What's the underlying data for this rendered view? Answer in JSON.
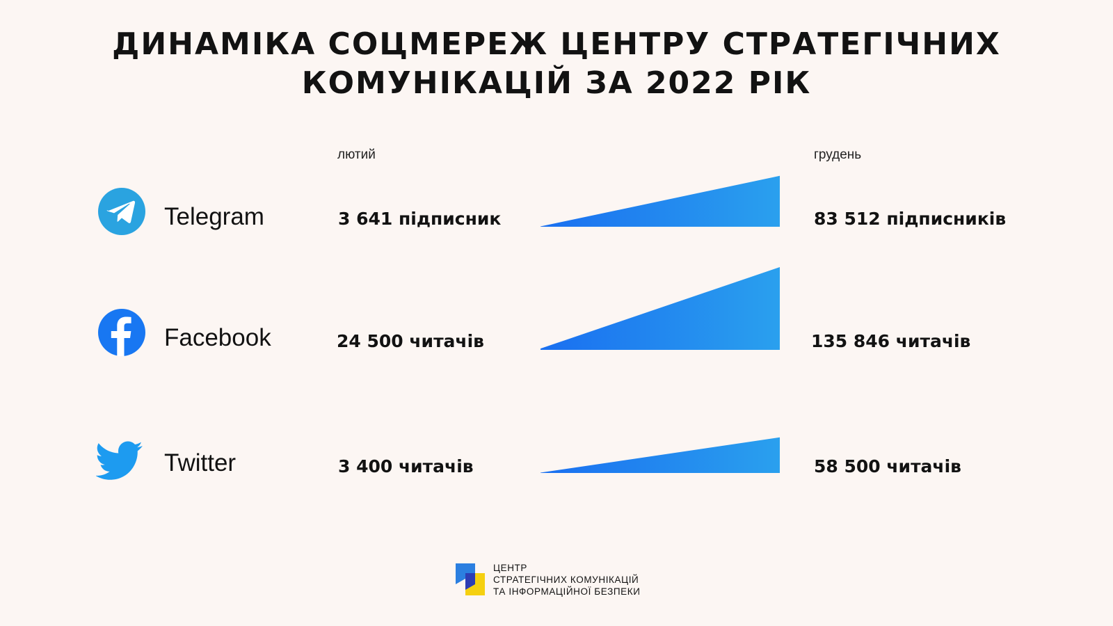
{
  "title": {
    "line1": "ДИНАМІКА СОЦМЕРЕЖ ЦЕНТРУ СТРАТЕГІЧНИХ",
    "line2": "КОМУНІКАЦІЙ ЗА 2022 РІК"
  },
  "columns": {
    "start": "лютий",
    "end": "грудень"
  },
  "rows": [
    {
      "platform": "Telegram",
      "icon": "telegram-icon",
      "start_label": "3 641 підписник",
      "end_label": "83 512 підписників"
    },
    {
      "platform": "Facebook",
      "icon": "facebook-icon",
      "start_label": "24 500 читачів",
      "end_label": "135 846 читачів"
    },
    {
      "platform": "Twitter",
      "icon": "twitter-icon",
      "start_label": "3 400 читачів",
      "end_label": "58 500 читачів"
    }
  ],
  "chart_data": {
    "type": "area",
    "title": "ДИНАМІКА СОЦМЕРЕЖ ЦЕНТРУ СТРАТЕГІЧНИХ КОМУНІКАЦІЙ ЗА 2022 РІК",
    "categories": [
      "лютий",
      "грудень"
    ],
    "series": [
      {
        "name": "Telegram",
        "values": [
          3641,
          83512
        ]
      },
      {
        "name": "Facebook",
        "values": [
          24500,
          135846
        ]
      },
      {
        "name": "Twitter",
        "values": [
          3400,
          58500
        ]
      }
    ]
  },
  "colors": {
    "background": "#fcf6f3",
    "wedge_start": "#1a6ff0",
    "wedge_end": "#2aa0ee",
    "telegram": "#2aa3e0",
    "facebook": "#1877f2",
    "twitter": "#1d9bf0",
    "logo_blue": "#2b7fe0",
    "logo_yellow": "#f5d010",
    "logo_navy": "#2c3db5"
  },
  "footer": {
    "line1": "ЦЕНТР",
    "line2": "СТРАТЕГІЧНИХ КОМУНІКАЦІЙ",
    "line3": "ТА ІНФОРМАЦІЙНОЇ БЕЗПЕКИ"
  }
}
